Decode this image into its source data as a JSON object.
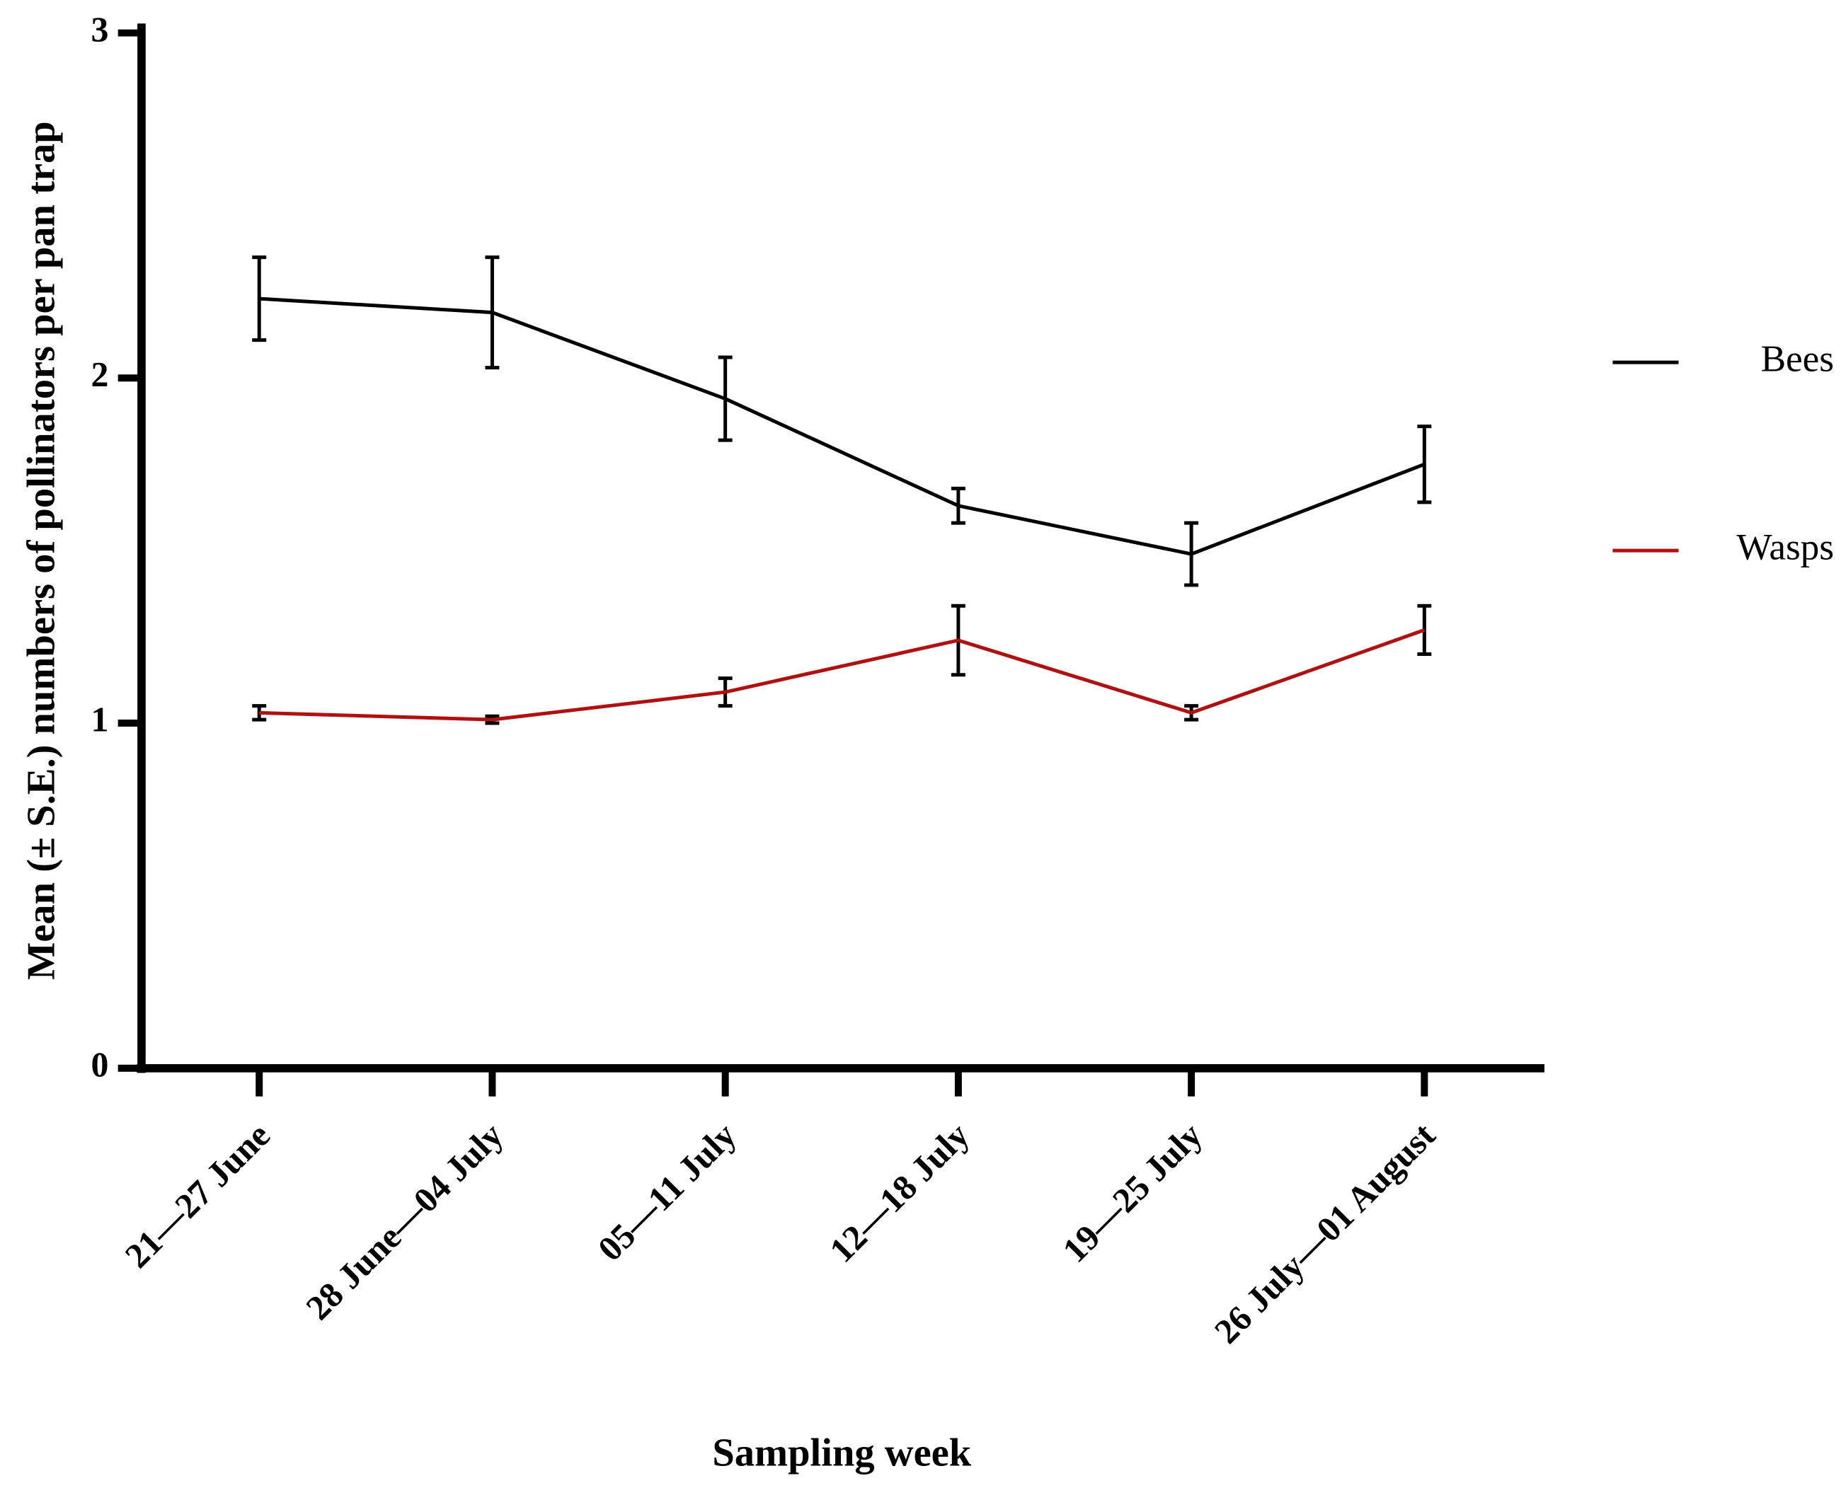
{
  "chart_data": {
    "type": "line",
    "x_label": "Sampling week",
    "y_label": "Mean (± S.E.) numbers of pollinators per pan trap",
    "categories": [
      "21—27 June",
      "28 June—04 July",
      "05—11 July",
      "12—18 July",
      "19—25 July",
      "26 July—01 August"
    ],
    "series": [
      {
        "name": "Bees",
        "color": "#000000",
        "values": [
          2.23,
          2.19,
          1.94,
          1.63,
          1.49,
          1.75
        ],
        "errors": [
          0.12,
          0.16,
          0.12,
          0.05,
          0.09,
          0.11
        ]
      },
      {
        "name": "Wasps",
        "color": "#b01010",
        "values": [
          1.03,
          1.01,
          1.09,
          1.24,
          1.03,
          1.27
        ],
        "errors": [
          0.02,
          0.01,
          0.04,
          0.1,
          0.02,
          0.07
        ]
      }
    ],
    "ylim": [
      0,
      3
    ],
    "yticks": [
      0,
      1,
      2,
      3
    ],
    "legend": "right"
  }
}
